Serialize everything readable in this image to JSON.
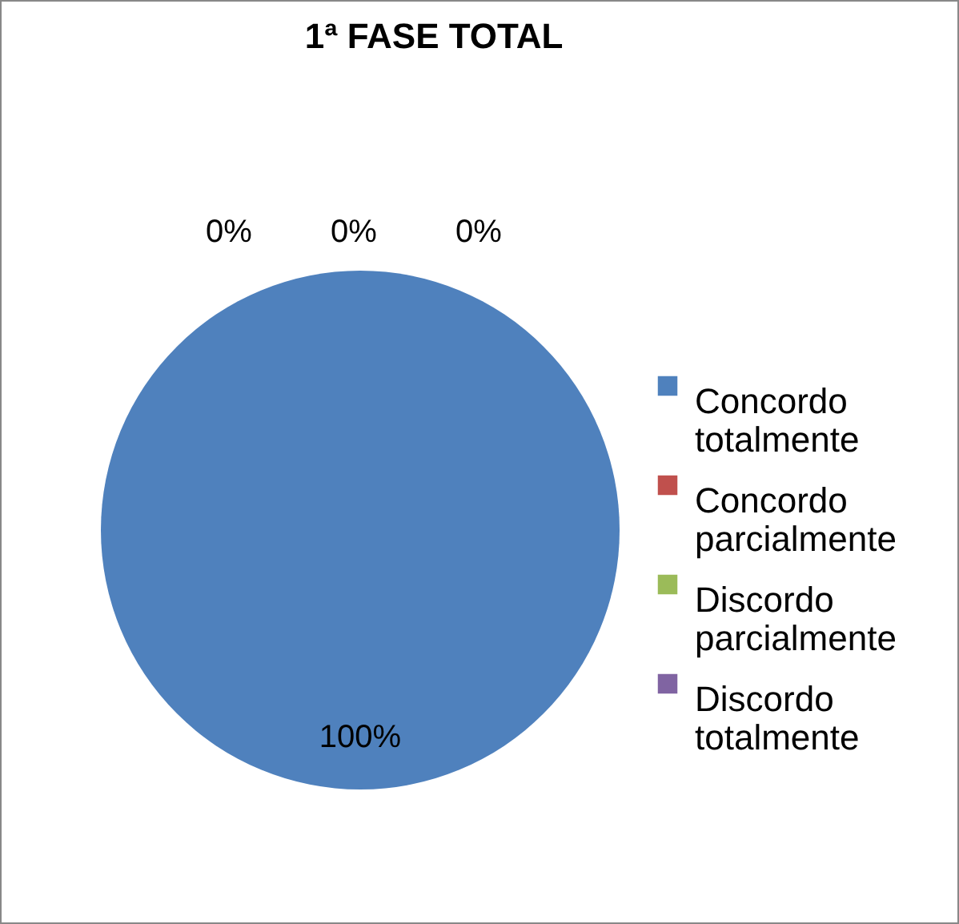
{
  "chart_data": {
    "type": "pie",
    "title": "1ª FASE TOTAL",
    "categories": [
      "Concordo totalmente",
      "Concordo parcialmente",
      "Discordo parcialmente",
      "Discordo totalmente"
    ],
    "values": [
      100,
      0,
      0,
      0
    ],
    "colors": [
      "#4f81bd",
      "#c0504d",
      "#9bbb59",
      "#8064a2"
    ],
    "value_labels": [
      "100%",
      "0%",
      "0%",
      "0%"
    ],
    "legend": "right"
  }
}
